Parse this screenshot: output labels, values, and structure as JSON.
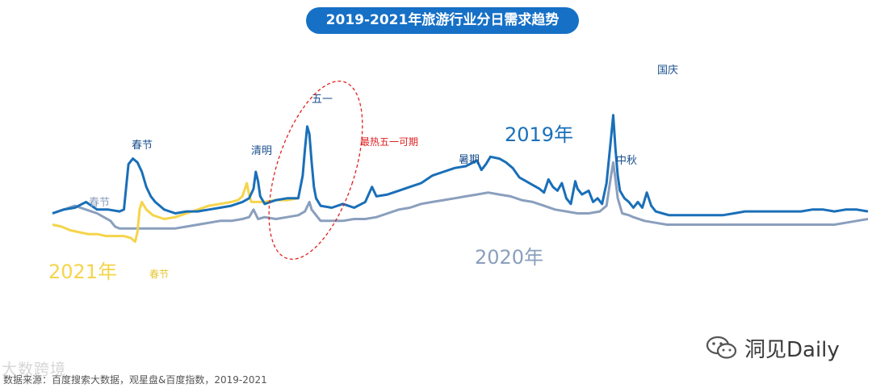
{
  "title": "2019-2021年旅游行业分日需求趋势",
  "footer": {
    "source": "数据来源：百度搜索大数据，观星盘&百度指数，2019-2021",
    "watermark_left": "大数跨境",
    "watermark_right": "洞见Daily"
  },
  "colors": {
    "title_bg": "#1670c6",
    "y2019": "#1a6fb8",
    "y2020": "#8a9fbd",
    "y2021": "#f5d44a",
    "callout": "#e02020"
  },
  "icons": [
    "wechat-icon"
  ],
  "chart_data": {
    "type": "line",
    "title": "2019-2021年旅游行业分日需求趋势",
    "xlabel": "",
    "ylabel": "",
    "x_range": [
      0,
      365
    ],
    "ylim": [
      0,
      100
    ],
    "grid": false,
    "legend": "inline-labels",
    "series": [
      {
        "name": "2019年",
        "color": "#1a6fb8",
        "points": [
          [
            0,
            28
          ],
          [
            5,
            30
          ],
          [
            10,
            31
          ],
          [
            15,
            34
          ],
          [
            20,
            30
          ],
          [
            25,
            30
          ],
          [
            30,
            29
          ],
          [
            32,
            30
          ],
          [
            34,
            54
          ],
          [
            36,
            57
          ],
          [
            38,
            55
          ],
          [
            40,
            50
          ],
          [
            42,
            42
          ],
          [
            44,
            37
          ],
          [
            46,
            34
          ],
          [
            50,
            30
          ],
          [
            55,
            28
          ],
          [
            60,
            29
          ],
          [
            65,
            29
          ],
          [
            70,
            30
          ],
          [
            75,
            31
          ],
          [
            80,
            32
          ],
          [
            85,
            34
          ],
          [
            88,
            36
          ],
          [
            90,
            41
          ],
          [
            91,
            50
          ],
          [
            92,
            45
          ],
          [
            93,
            37
          ],
          [
            95,
            33
          ],
          [
            100,
            35
          ],
          [
            105,
            36
          ],
          [
            110,
            36
          ],
          [
            112,
            48
          ],
          [
            113,
            62
          ],
          [
            114,
            74
          ],
          [
            115,
            70
          ],
          [
            116,
            55
          ],
          [
            117,
            42
          ],
          [
            118,
            36
          ],
          [
            120,
            32
          ],
          [
            125,
            31
          ],
          [
            130,
            33
          ],
          [
            135,
            31
          ],
          [
            140,
            34
          ],
          [
            143,
            42
          ],
          [
            145,
            37
          ],
          [
            150,
            38
          ],
          [
            155,
            40
          ],
          [
            160,
            42
          ],
          [
            165,
            44
          ],
          [
            170,
            48
          ],
          [
            175,
            50
          ],
          [
            180,
            52
          ],
          [
            185,
            53
          ],
          [
            190,
            56
          ],
          [
            192,
            51
          ],
          [
            194,
            54
          ],
          [
            196,
            58
          ],
          [
            200,
            57
          ],
          [
            203,
            55
          ],
          [
            206,
            52
          ],
          [
            209,
            47
          ],
          [
            212,
            45
          ],
          [
            215,
            43
          ],
          [
            218,
            41
          ],
          [
            220,
            39
          ],
          [
            222,
            46
          ],
          [
            224,
            42
          ],
          [
            226,
            40
          ],
          [
            228,
            44
          ],
          [
            230,
            36
          ],
          [
            232,
            33
          ],
          [
            234,
            45
          ],
          [
            235,
            41
          ],
          [
            237,
            38
          ],
          [
            240,
            40
          ],
          [
            242,
            34
          ],
          [
            244,
            36
          ],
          [
            246,
            33
          ],
          [
            248,
            44
          ],
          [
            250,
            68
          ],
          [
            251,
            80
          ],
          [
            252,
            62
          ],
          [
            253,
            48
          ],
          [
            254,
            40
          ],
          [
            256,
            36
          ],
          [
            258,
            34
          ],
          [
            260,
            31
          ],
          [
            262,
            34
          ],
          [
            264,
            31
          ],
          [
            266,
            39
          ],
          [
            268,
            32
          ],
          [
            270,
            29
          ],
          [
            273,
            28
          ],
          [
            276,
            27
          ],
          [
            280,
            27
          ],
          [
            285,
            27
          ],
          [
            290,
            27
          ],
          [
            295,
            27
          ],
          [
            300,
            27
          ],
          [
            305,
            28
          ],
          [
            310,
            29
          ],
          [
            315,
            29
          ],
          [
            320,
            29
          ],
          [
            325,
            29
          ],
          [
            330,
            29
          ],
          [
            335,
            29
          ],
          [
            340,
            30
          ],
          [
            345,
            30
          ],
          [
            350,
            29
          ],
          [
            355,
            30
          ],
          [
            360,
            30
          ],
          [
            365,
            29
          ]
        ]
      },
      {
        "name": "2020年",
        "color": "#8a9fbd",
        "points": [
          [
            0,
            28
          ],
          [
            5,
            30
          ],
          [
            10,
            32
          ],
          [
            15,
            30
          ],
          [
            20,
            28
          ],
          [
            23,
            26
          ],
          [
            26,
            24
          ],
          [
            28,
            21
          ],
          [
            30,
            20
          ],
          [
            32,
            20
          ],
          [
            35,
            20
          ],
          [
            38,
            20
          ],
          [
            40,
            20
          ],
          [
            45,
            20
          ],
          [
            50,
            20
          ],
          [
            55,
            20
          ],
          [
            60,
            21
          ],
          [
            65,
            22
          ],
          [
            70,
            23
          ],
          [
            75,
            24
          ],
          [
            80,
            24
          ],
          [
            85,
            25
          ],
          [
            88,
            26
          ],
          [
            90,
            30
          ],
          [
            92,
            25
          ],
          [
            95,
            26
          ],
          [
            100,
            25
          ],
          [
            105,
            26
          ],
          [
            110,
            27
          ],
          [
            113,
            29
          ],
          [
            115,
            34
          ],
          [
            116,
            30
          ],
          [
            118,
            27
          ],
          [
            120,
            24
          ],
          [
            125,
            24
          ],
          [
            130,
            24
          ],
          [
            135,
            25
          ],
          [
            140,
            25
          ],
          [
            145,
            26
          ],
          [
            150,
            28
          ],
          [
            155,
            30
          ],
          [
            160,
            31
          ],
          [
            165,
            33
          ],
          [
            170,
            34
          ],
          [
            175,
            35
          ],
          [
            180,
            36
          ],
          [
            185,
            37
          ],
          [
            190,
            38
          ],
          [
            195,
            39
          ],
          [
            200,
            38
          ],
          [
            205,
            37
          ],
          [
            210,
            35
          ],
          [
            215,
            34
          ],
          [
            220,
            32
          ],
          [
            225,
            30
          ],
          [
            230,
            29
          ],
          [
            235,
            28
          ],
          [
            240,
            28
          ],
          [
            245,
            29
          ],
          [
            248,
            32
          ],
          [
            250,
            48
          ],
          [
            251,
            55
          ],
          [
            252,
            46
          ],
          [
            253,
            36
          ],
          [
            255,
            28
          ],
          [
            258,
            27
          ],
          [
            260,
            26
          ],
          [
            265,
            24
          ],
          [
            270,
            23
          ],
          [
            275,
            22
          ],
          [
            280,
            22
          ],
          [
            285,
            22
          ],
          [
            290,
            22
          ],
          [
            295,
            22
          ],
          [
            300,
            22
          ],
          [
            305,
            22
          ],
          [
            310,
            22
          ],
          [
            315,
            22
          ],
          [
            320,
            22
          ],
          [
            325,
            22
          ],
          [
            330,
            22
          ],
          [
            335,
            22
          ],
          [
            340,
            22
          ],
          [
            345,
            22
          ],
          [
            350,
            22
          ],
          [
            355,
            23
          ],
          [
            360,
            24
          ],
          [
            365,
            25
          ]
        ]
      },
      {
        "name": "2021年",
        "color": "#f5d44a",
        "points": [
          [
            0,
            22
          ],
          [
            4,
            21
          ],
          [
            8,
            19
          ],
          [
            12,
            18
          ],
          [
            16,
            17
          ],
          [
            20,
            17
          ],
          [
            24,
            16
          ],
          [
            28,
            16
          ],
          [
            32,
            16
          ],
          [
            35,
            15
          ],
          [
            37,
            13
          ],
          [
            38,
            18
          ],
          [
            39,
            30
          ],
          [
            40,
            34
          ],
          [
            42,
            30
          ],
          [
            45,
            27
          ],
          [
            50,
            25
          ],
          [
            55,
            26
          ],
          [
            60,
            28
          ],
          [
            65,
            30
          ],
          [
            70,
            32
          ],
          [
            75,
            33
          ],
          [
            80,
            34
          ],
          [
            83,
            35
          ],
          [
            85,
            37
          ],
          [
            87,
            44
          ],
          [
            88,
            38
          ],
          [
            89,
            34
          ],
          [
            92,
            34
          ],
          [
            95,
            34
          ],
          [
            100,
            35
          ],
          [
            105,
            35
          ],
          [
            110,
            36
          ]
        ]
      }
    ],
    "annotations": [
      {
        "text": "春节",
        "series": "2019年",
        "x": 36
      },
      {
        "text": "春节",
        "series": "2020年",
        "x": 20
      },
      {
        "text": "春节",
        "series": "2021年",
        "x": 40
      },
      {
        "text": "清明",
        "series": "2019年",
        "x": 91
      },
      {
        "text": "五一",
        "series": "2019年",
        "x": 114
      },
      {
        "text": "暑期",
        "series": "2019年",
        "x": 175
      },
      {
        "text": "中秋",
        "series": "2019年",
        "x": 234
      },
      {
        "text": "国庆",
        "series": "2019年",
        "x": 251
      },
      {
        "text": "最热五一可期",
        "series": "2021年",
        "x": 114,
        "style": "dashed-ellipse"
      }
    ]
  }
}
